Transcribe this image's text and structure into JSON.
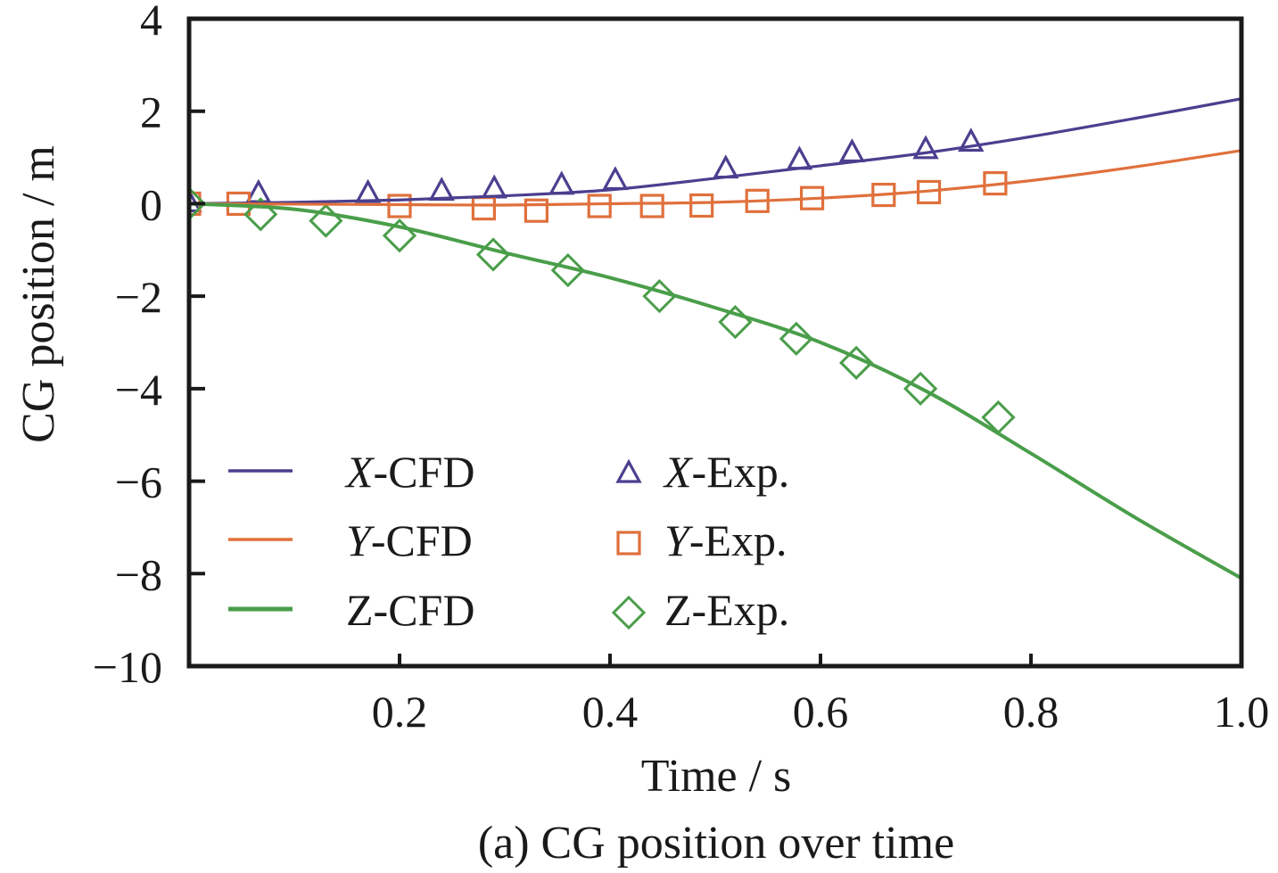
{
  "chart_data": {
    "type": "line",
    "title": "(a) CG position over time",
    "xlabel": "Time / s",
    "ylabel": "CG position / m",
    "xlim": [
      0,
      1.0
    ],
    "ylim": [
      -10,
      4
    ],
    "grid": false,
    "xticks": [
      0.2,
      0.4,
      0.6,
      0.8,
      1.0
    ],
    "xtick_labels": [
      "0.2",
      "0.4",
      "0.6",
      "0.8",
      "1.0"
    ],
    "yticks": [
      4,
      2,
      0,
      -2,
      -4,
      -6,
      -8,
      -10
    ],
    "ytick_labels": [
      "4",
      "2",
      "0",
      "−2",
      "−4",
      "−6",
      "−8",
      "−10"
    ],
    "legend_position": "bottom-left",
    "series": [
      {
        "name": "X-CFD",
        "axis": "X",
        "suffix": "-CFD",
        "italic": true,
        "kind": "line",
        "color": "#4b3f8f",
        "x": [
          0,
          0.1,
          0.2,
          0.3,
          0.4,
          0.5,
          0.6,
          0.7,
          0.8,
          0.9,
          1.0
        ],
        "y": [
          0,
          0.03,
          0.08,
          0.17,
          0.3,
          0.55,
          0.82,
          1.1,
          1.45,
          1.85,
          2.27
        ]
      },
      {
        "name": "Y-CFD",
        "axis": "Y",
        "suffix": "-CFD",
        "italic": true,
        "kind": "line",
        "color": "#e0703c",
        "x": [
          0,
          0.1,
          0.2,
          0.3,
          0.4,
          0.5,
          0.6,
          0.7,
          0.8,
          0.9,
          1.0
        ],
        "y": [
          0,
          -0.01,
          -0.02,
          -0.03,
          0,
          0.03,
          0.12,
          0.27,
          0.5,
          0.8,
          1.15
        ]
      },
      {
        "name": "Z-CFD",
        "axis": "Z",
        "suffix": "-CFD",
        "italic": false,
        "kind": "line",
        "color": "#4a9e4a",
        "x": [
          0,
          0.1,
          0.2,
          0.3,
          0.4,
          0.5,
          0.6,
          0.7,
          0.8,
          0.9,
          1.0
        ],
        "y": [
          0,
          -0.12,
          -0.5,
          -1.06,
          -1.6,
          -2.25,
          -3.0,
          -4.05,
          -5.4,
          -6.8,
          -8.1
        ]
      },
      {
        "name": "X-Exp.",
        "axis": "X",
        "suffix": "-Exp.",
        "italic": true,
        "kind": "marker",
        "marker": "triangle",
        "color": "#4b3f8f",
        "x": [
          0,
          0.066,
          0.17,
          0.24,
          0.29,
          0.354,
          0.405,
          0.51,
          0.58,
          0.63,
          0.7,
          0.743
        ],
        "y": [
          0,
          0.2,
          0.2,
          0.25,
          0.3,
          0.38,
          0.48,
          0.73,
          0.92,
          1.08,
          1.15,
          1.31
        ]
      },
      {
        "name": "Y-Exp.",
        "axis": "Y",
        "suffix": "-Exp.",
        "italic": true,
        "kind": "marker",
        "marker": "square",
        "color": "#e0703c",
        "x": [
          0,
          0.047,
          0.2,
          0.28,
          0.33,
          0.39,
          0.44,
          0.487,
          0.54,
          0.592,
          0.66,
          0.703,
          0.766
        ],
        "y": [
          0,
          0,
          -0.05,
          -0.1,
          -0.15,
          -0.05,
          -0.05,
          -0.04,
          0.06,
          0.12,
          0.19,
          0.25,
          0.44
        ]
      },
      {
        "name": "Z-Exp.",
        "axis": "Z",
        "suffix": "-Exp.",
        "italic": false,
        "kind": "marker",
        "marker": "diamond",
        "color": "#4a9e4a",
        "x": [
          0,
          0.068,
          0.13,
          0.2,
          0.289,
          0.36,
          0.447,
          0.519,
          0.577,
          0.634,
          0.695,
          0.769
        ],
        "y": [
          0,
          -0.23,
          -0.37,
          -0.69,
          -1.1,
          -1.44,
          -2.0,
          -2.56,
          -2.92,
          -3.44,
          -4.0,
          -4.62
        ]
      }
    ]
  }
}
